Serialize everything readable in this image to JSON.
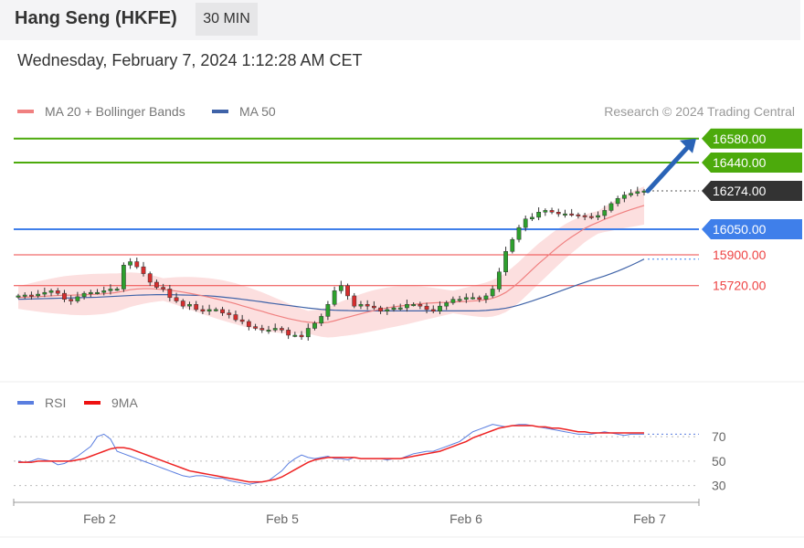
{
  "header": {
    "title": "Hang Seng (HKFE)",
    "interval": "30 MIN",
    "datetime": "Wednesday, February 7, 2024 1:12:28 AM CET"
  },
  "legend": {
    "ma20": "MA 20 + Bollinger Bands",
    "ma50": "MA 50",
    "rsi": "RSI",
    "rsi_ma": "9MA",
    "credit": "Research © 2024 Trading Central"
  },
  "colors": {
    "green": "#4caa0c",
    "blue": "#3f7fea",
    "red": "#ee4444",
    "ma20": "#f08080",
    "ma50": "#3f63a8",
    "band": "#fbd4d4",
    "arrow": "#2a63b6",
    "current": "#333333"
  },
  "chart_data": [
    {
      "type": "candlestick",
      "ylim": [
        15200,
        16750
      ],
      "x_ticks": [
        "Feb 2",
        "Feb 5",
        "Feb 6",
        "Feb 7"
      ],
      "levels": [
        {
          "label": "16580.00",
          "value": 16580,
          "style": "resistance"
        },
        {
          "label": "16440.00",
          "value": 16440,
          "style": "resistance"
        },
        {
          "label": "16274.00",
          "value": 16274,
          "style": "current"
        },
        {
          "label": "16050.00",
          "value": 16050,
          "style": "pivot"
        },
        {
          "label": "15900.00",
          "value": 15900,
          "style": "support"
        },
        {
          "label": "15720.00",
          "value": 15720,
          "style": "support"
        }
      ],
      "target_arrow": {
        "from": 16274,
        "to": 16580
      },
      "close": [
        15660,
        15665,
        15660,
        15670,
        15680,
        15690,
        15675,
        15640,
        15630,
        15655,
        15675,
        15680,
        15680,
        15690,
        15700,
        15700,
        15840,
        15860,
        15830,
        15790,
        15740,
        15710,
        15700,
        15650,
        15630,
        15600,
        15610,
        15580,
        15570,
        15580,
        15580,
        15560,
        15550,
        15520,
        15510,
        15480,
        15470,
        15460,
        15460,
        15470,
        15460,
        15430,
        15430,
        15420,
        15470,
        15500,
        15540,
        15610,
        15690,
        15720,
        15660,
        15600,
        15610,
        15600,
        15590,
        15570,
        15580,
        15590,
        15590,
        15610,
        15610,
        15600,
        15580,
        15570,
        15600,
        15620,
        15640,
        15640,
        15650,
        15650,
        15640,
        15660,
        15700,
        15800,
        15920,
        15990,
        16060,
        16110,
        16120,
        16150,
        16160,
        16150,
        16140,
        16140,
        16135,
        16130,
        16125,
        16120,
        16130,
        16160,
        16200,
        16230,
        16250,
        16260,
        16270,
        16274
      ],
      "ma20": [
        15650,
        15652,
        15654,
        15656,
        15658,
        15660,
        15662,
        15664,
        15664,
        15665,
        15666,
        15668,
        15670,
        15672,
        15676,
        15680,
        15688,
        15696,
        15700,
        15702,
        15702,
        15700,
        15697,
        15693,
        15688,
        15682,
        15675,
        15668,
        15660,
        15652,
        15643,
        15634,
        15624,
        15614,
        15602,
        15591,
        15580,
        15570,
        15558,
        15547,
        15537,
        15527,
        15519,
        15511,
        15506,
        15503,
        15502,
        15505,
        15514,
        15525,
        15535,
        15545,
        15555,
        15565,
        15574,
        15582,
        15590,
        15596,
        15601,
        15605,
        15610,
        15614,
        15617,
        15619,
        15621,
        15622,
        15624,
        15626,
        15628,
        15630,
        15633,
        15637,
        15646,
        15660,
        15680,
        15708,
        15740,
        15776,
        15813,
        15849,
        15882,
        15916,
        15948,
        15978,
        16005,
        16030,
        16055,
        16074,
        16090,
        16108,
        16122,
        16138,
        16152,
        16165,
        16177,
        16189
      ],
      "ma50": [
        15640,
        15641,
        15642,
        15643,
        15644,
        15645,
        15646,
        15647,
        15648,
        15649,
        15650,
        15651,
        15652,
        15654,
        15656,
        15658,
        15660,
        15662,
        15664,
        15665,
        15666,
        15667,
        15667,
        15667,
        15666,
        15665,
        15664,
        15663,
        15662,
        15660,
        15657,
        15653,
        15649,
        15645,
        15640,
        15635,
        15630,
        15625,
        15619,
        15614,
        15609,
        15604,
        15599,
        15594,
        15589,
        15585,
        15581,
        15578,
        15576,
        15575,
        15574,
        15573,
        15572,
        15572,
        15572,
        15572,
        15572,
        15572,
        15572,
        15572,
        15572,
        15572,
        15572,
        15572,
        15572,
        15572,
        15572,
        15572,
        15572,
        15572,
        15573,
        15575,
        15578,
        15582,
        15588,
        15596,
        15606,
        15618,
        15630,
        15643,
        15656,
        15670,
        15684,
        15698,
        15712,
        15726,
        15739,
        15752,
        15764,
        15776,
        15790,
        15805,
        15821,
        15838,
        15856,
        15875
      ],
      "band_width": 120
    },
    {
      "type": "line",
      "title": "RSI",
      "ylim": [
        20,
        85
      ],
      "y_ticks": [
        70,
        50,
        30
      ],
      "series": [
        {
          "name": "RSI",
          "values": [
            50,
            49,
            50,
            52,
            51,
            50,
            47,
            48,
            51,
            54,
            58,
            62,
            70,
            72,
            68,
            58,
            56,
            54,
            52,
            50,
            48,
            46,
            44,
            42,
            40,
            38,
            37,
            38,
            38,
            37,
            36,
            36,
            34,
            33,
            32,
            31,
            32,
            33,
            34,
            38,
            42,
            48,
            52,
            55,
            53,
            52,
            53,
            54,
            52,
            52,
            51,
            53,
            52,
            52,
            52,
            52,
            51,
            52,
            52,
            54,
            56,
            57,
            58,
            58,
            60,
            62,
            64,
            66,
            70,
            74,
            76,
            78,
            80,
            79,
            78,
            79,
            80,
            80,
            79,
            78,
            77,
            76,
            75,
            74,
            73,
            72,
            72,
            72,
            73,
            74,
            73,
            72,
            71,
            72,
            72,
            72
          ]
        },
        {
          "name": "9MA",
          "values": [
            49,
            49,
            49,
            50,
            50,
            50,
            50,
            50,
            50,
            51,
            52,
            54,
            56,
            58,
            60,
            61,
            61,
            60,
            58,
            56,
            54,
            52,
            50,
            48,
            46,
            44,
            42,
            41,
            40,
            39,
            38,
            37,
            36,
            35,
            34,
            33,
            33,
            33,
            34,
            35,
            37,
            40,
            43,
            46,
            49,
            51,
            52,
            53,
            53,
            53,
            53,
            53,
            52,
            52,
            52,
            52,
            52,
            52,
            52,
            53,
            54,
            55,
            56,
            57,
            58,
            60,
            62,
            64,
            66,
            69,
            71,
            73,
            75,
            77,
            78,
            79,
            79,
            79,
            79,
            78,
            78,
            77,
            77,
            76,
            75,
            74,
            74,
            73,
            73,
            73,
            73,
            73,
            73,
            73,
            73,
            73
          ]
        }
      ]
    }
  ]
}
